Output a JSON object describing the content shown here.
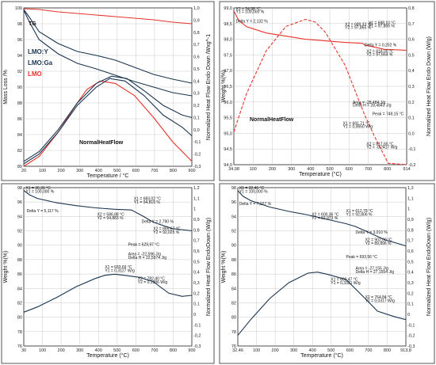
{
  "chart_data": [
    {
      "type": "line",
      "panel": "top-left",
      "xlabel": "Temperature / °C",
      "ylabel_left": "Mass Loss /%",
      "ylabel_right": "Normalized Heat Flow Endo Down /Wxg^-1",
      "xlim": [
        20,
        900
      ],
      "ylim_left": [
        80,
        100
      ],
      "ylim_right": [
        -0.3,
        1.0
      ],
      "x_ticks": [
        "20",
        "100",
        "200",
        "300",
        "400",
        "500",
        "600",
        "700",
        "800",
        "900"
      ],
      "y_left_ticks": [
        "80",
        "82",
        "84",
        "86",
        "88",
        "90",
        "92",
        "94",
        "96",
        "98",
        "100"
      ],
      "y_right_ticks": [
        "1,0",
        "0,9",
        "0,8",
        "0,7",
        "0,6",
        "0,5",
        "0,4",
        "0,3",
        "0,2",
        "0,1",
        "0,0",
        "-0,1",
        "-0,2",
        "-0,3"
      ],
      "grid": true,
      "labels": {
        "tg": "TG",
        "hf": "NormalHeatFlow"
      },
      "legend": [
        "LMO:Y",
        "LMO:Ga",
        "LMO"
      ],
      "series": [
        {
          "name": "LMO",
          "kind": "TG",
          "axis": "left",
          "color": "#e8322a",
          "x": [
            20,
            100,
            200,
            300,
            400,
            500,
            600,
            700,
            800,
            900
          ],
          "y": [
            99.9,
            99.8,
            99.5,
            99.3,
            99.1,
            98.9,
            98.7,
            98.5,
            98.2,
            98.0
          ]
        },
        {
          "name": "LMO:Y",
          "kind": "TG",
          "axis": "left",
          "color": "#1a3550",
          "x": [
            20,
            50,
            100,
            200,
            300,
            400,
            500,
            600,
            700,
            800,
            900
          ],
          "y": [
            99.8,
            98.8,
            97.0,
            95.5,
            94.5,
            94.0,
            93.4,
            92.5,
            91.6,
            91.0,
            90.5
          ]
        },
        {
          "name": "LMO:Ga",
          "kind": "TG",
          "axis": "left",
          "color": "#1a3550",
          "x": [
            20,
            50,
            100,
            200,
            300,
            400,
            500,
            600,
            700,
            800,
            900
          ],
          "y": [
            99.7,
            98.2,
            96.0,
            94.2,
            93.0,
            92.3,
            91.5,
            90.7,
            90.0,
            89.3,
            88.9
          ]
        },
        {
          "name": "LMO",
          "kind": "HF",
          "axis": "right",
          "color": "#e8322a",
          "x": [
            20,
            100,
            200,
            300,
            350,
            420,
            500,
            600,
            700,
            800,
            900
          ],
          "y": [
            -0.3,
            -0.22,
            -0.02,
            0.22,
            0.33,
            0.4,
            0.38,
            0.28,
            0.1,
            -0.1,
            -0.26
          ]
        },
        {
          "name": "LMO:Y",
          "kind": "HF",
          "axis": "right",
          "color": "#1a3550",
          "x": [
            20,
            100,
            200,
            300,
            400,
            470,
            550,
            650,
            750,
            850,
            900
          ],
          "y": [
            -0.28,
            -0.2,
            -0.02,
            0.2,
            0.35,
            0.42,
            0.4,
            0.28,
            0.12,
            0.02,
            -0.05
          ]
        },
        {
          "name": "LMO:Ga",
          "kind": "HF",
          "axis": "right",
          "color": "#1a3550",
          "x": [
            20,
            100,
            200,
            300,
            400,
            480,
            560,
            650,
            750,
            850,
            900
          ],
          "y": [
            -0.26,
            -0.18,
            0.0,
            0.22,
            0.38,
            0.44,
            0.42,
            0.32,
            0.2,
            0.12,
            0.1
          ]
        }
      ]
    },
    {
      "type": "line",
      "panel": "top-right",
      "xlabel": "Temperature (°C)",
      "ylabel_left": "Weight %(%)",
      "ylabel_right": "Normalized Heat Flow Endo Down (W/g)",
      "xlim": [
        34.98,
        914
      ],
      "ylim_left": [
        94.0,
        99.0
      ],
      "ylim_right": [
        -0.25,
        0.85
      ],
      "x_ticks": [
        "34,98",
        "100",
        "200",
        "300",
        "400",
        "500",
        "600",
        "700",
        "800",
        "914"
      ],
      "y_left_ticks": [
        "94,0",
        "94,5",
        "95,0",
        "95,5",
        "96,0",
        "96,5",
        "97,0",
        "97,5",
        "98,0",
        "98,5",
        "99,0"
      ],
      "y_right_ticks": [
        "0,8",
        "0,7",
        "0,6",
        "0,5",
        "0,4",
        "0,3",
        "0,2",
        "0,1",
        "0,0",
        "-0,1",
        "-0,2"
      ],
      "grid": true,
      "labels": {
        "hf": "NormalHeatFlow"
      },
      "annotations": [
        {
          "text": "X1 = 34,98 °C",
          "x": 45,
          "y": 98.93
        },
        {
          "text": "Y1 = 100,000 %",
          "x": 45,
          "y": 98.83
        },
        {
          "text": "Delta Y = 2,132 %",
          "x": 45,
          "y": 98.53
        },
        {
          "text": "X2 = 689,33 °C",
          "x": 600,
          "y": 98.43
        },
        {
          "text": "Y2 = 97,865 %",
          "x": 600,
          "y": 98.33
        },
        {
          "text": "X1 = 698,10 °C",
          "x": 720,
          "y": 98.48
        },
        {
          "text": "Y1 = 97,866 %",
          "x": 720,
          "y": 98.38
        },
        {
          "text": "Delta Y = 0,202 %",
          "x": 700,
          "y": 97.78
        },
        {
          "text": "X2 = 818,00 °C",
          "x": 710,
          "y": 97.57
        },
        {
          "text": "Y2 = 97,664 %",
          "x": 710,
          "y": 97.47
        },
        {
          "text": "Area = -28,484 J/g",
          "x": 640,
          "y": 95.95
        },
        {
          "text": "Delta H = 28,4843 J/g",
          "x": 640,
          "y": 95.85
        },
        {
          "text": "Peak = 749,15 °C",
          "x": 740,
          "y": 95.58
        },
        {
          "text": "X1 = 691,71 °C",
          "x": 590,
          "y": 95.27
        },
        {
          "text": "Y1 = 0,0650 W/g",
          "x": 590,
          "y": 95.17
        },
        {
          "text": "X2 = 817,65 °C",
          "x": 710,
          "y": 94.62
        },
        {
          "text": "Y2 = -0,2417 W/g",
          "x": 710,
          "y": 94.52
        }
      ],
      "series": [
        {
          "name": "",
          "kind": "TG",
          "axis": "left",
          "color": "#e8322a",
          "x": [
            35,
            60,
            100,
            150,
            200,
            300,
            400,
            500,
            600,
            690,
            700,
            800,
            914
          ],
          "y": [
            98.9,
            98.6,
            98.4,
            98.3,
            98.2,
            98.1,
            98.0,
            97.95,
            97.9,
            97.87,
            97.82,
            97.68,
            97.65
          ]
        },
        {
          "name": "",
          "kind": "HF",
          "axis": "right",
          "color": "#e8322a",
          "x": [
            35,
            100,
            200,
            300,
            400,
            450,
            500,
            600,
            700,
            750,
            820,
            914
          ],
          "y": [
            -0.02,
            0.25,
            0.55,
            0.72,
            0.77,
            0.75,
            0.68,
            0.45,
            0.1,
            -0.05,
            -0.24,
            -0.25
          ]
        }
      ]
    },
    {
      "type": "line",
      "panel": "bottom-left",
      "xlabel": "Temperature (°C)",
      "ylabel_left": "Weight %(%)",
      "ylabel_right": "Normalized Heat Flow EndoDown (W/g)",
      "xlim": [
        30,
        900
      ],
      "ylim_left": [
        76,
        98
      ],
      "ylim_right": [
        -0.3,
        1.2
      ],
      "x_ticks": [
        "30",
        "100",
        "200",
        "300",
        "400",
        "500",
        "600",
        "700",
        "800",
        "900"
      ],
      "y_left_ticks": [
        "76",
        "78",
        "80",
        "82",
        "84",
        "86",
        "88",
        "90",
        "92",
        "94",
        "96",
        "98"
      ],
      "y_right_ticks": [
        "1,2",
        "1,1",
        "1",
        "0,9",
        "0,8",
        "0,7",
        "0,6",
        "0,5",
        "0,4",
        "0,3",
        "0,2",
        "0,1",
        "0",
        "-0,1",
        "-0,2",
        "-0,3"
      ],
      "grid": true,
      "annotations": [
        {
          "text": "X1 = 36,36 °C",
          "x": 40,
          "y": 97.8
        },
        {
          "text": "Y1 = 100,000 %",
          "x": 40,
          "y": 97.3
        },
        {
          "text": "Delta Y = 5,117 %",
          "x": 45,
          "y": 94.6
        },
        {
          "text": "X2 = 586,88 °C",
          "x": 410,
          "y": 94.1
        },
        {
          "text": "Y2 = 94,883 %",
          "x": 410,
          "y": 93.6
        },
        {
          "text": "X1 = 683,02 °C",
          "x": 600,
          "y": 96.3
        },
        {
          "text": "Y1 = 94,815 %",
          "x": 600,
          "y": 95.8
        },
        {
          "text": "Delta Y = 2,790 %",
          "x": 640,
          "y": 93.1
        },
        {
          "text": "X2 = 865,67 °C",
          "x": 700,
          "y": 92.1
        },
        {
          "text": "Y2 = 92,025 %",
          "x": 700,
          "y": 91.6
        },
        {
          "text": "Peak = 629,97 °C",
          "x": 570,
          "y": 89.9
        },
        {
          "text": "Area = -22,596 J/g",
          "x": 570,
          "y": 88.6
        },
        {
          "text": "Delta H = 22,5974 J/g",
          "x": 570,
          "y": 88.1
        },
        {
          "text": "X1 = 683,69 °C",
          "x": 450,
          "y": 86.8
        },
        {
          "text": "Y1 = 0,3127 W/g",
          "x": 450,
          "y": 86.3
        },
        {
          "text": "X2 = 782,40 °C",
          "x": 620,
          "y": 85.2
        },
        {
          "text": "Y2 = 0,1986 W/g",
          "x": 620,
          "y": 84.7
        }
      ],
      "series": [
        {
          "name": "",
          "kind": "TG",
          "axis": "left",
          "color": "#1a3550",
          "x": [
            30,
            60,
            100,
            200,
            300,
            400,
            500,
            587,
            650,
            700,
            800,
            900
          ],
          "y": [
            97.6,
            97.0,
            96.5,
            95.9,
            95.5,
            95.2,
            95.0,
            94.9,
            94.0,
            93.2,
            92.3,
            92.0
          ]
        },
        {
          "name": "",
          "kind": "HF",
          "axis": "right",
          "color": "#1a3550",
          "x": [
            30,
            100,
            200,
            300,
            400,
            450,
            500,
            550,
            630,
            700,
            780,
            850,
            900
          ],
          "y": [
            0.02,
            0.07,
            0.16,
            0.26,
            0.34,
            0.37,
            0.38,
            0.37,
            0.35,
            0.31,
            0.2,
            0.17,
            0.18
          ]
        }
      ]
    },
    {
      "type": "line",
      "panel": "bottom-right",
      "xlabel": "Temperature (°C)",
      "ylabel_left": "Weight %(%)",
      "ylabel_right": "Normalized Heat Flow EndoDown (W/g)",
      "xlim": [
        32.46,
        913.8
      ],
      "ylim_left": [
        76,
        98
      ],
      "ylim_right": [
        -0.3,
        1.2
      ],
      "x_ticks": [
        "32,46",
        "100",
        "200",
        "300",
        "400",
        "500",
        "600",
        "700",
        "800",
        "913,8"
      ],
      "y_left_ticks": [
        "76",
        "78",
        "80",
        "82",
        "84",
        "86",
        "88",
        "90",
        "92",
        "94",
        "96",
        "98"
      ],
      "y_right_ticks": [
        "1,2",
        "1,1",
        "1",
        "0,9",
        "0,8",
        "0,7",
        "0,6",
        "0,5",
        "0,4",
        "0,3",
        "0,2",
        "0,1",
        "0",
        "-0,1",
        "-0,2",
        "-0,3"
      ],
      "grid": true,
      "annotations": [
        {
          "text": "X1 = 32,46 °C",
          "x": 40,
          "y": 97.8
        },
        {
          "text": "Y1 = 100,000 %",
          "x": 40,
          "y": 97.3
        },
        {
          "text": "Delta Y = 7,027 %",
          "x": 40,
          "y": 95.6
        },
        {
          "text": "X2 = 600,36 °C",
          "x": 420,
          "y": 94.1
        },
        {
          "text": "Y2 = 92,973 %",
          "x": 420,
          "y": 93.6
        },
        {
          "text": "X1 = 612,78 °C",
          "x": 600,
          "y": 94.6
        },
        {
          "text": "Y1 = 92,806 %",
          "x": 600,
          "y": 94.1
        },
        {
          "text": "Delta Y = 3,010 %",
          "x": 650,
          "y": 91.6
        },
        {
          "text": "X2 = 902,00 °C",
          "x": 700,
          "y": 90.6
        },
        {
          "text": "Y2 = 89,896 %",
          "x": 700,
          "y": 90.1
        },
        {
          "text": "Peak = 693,56 °C",
          "x": 600,
          "y": 88.2
        },
        {
          "text": "Area = -27,155 J/g",
          "x": 650,
          "y": 86.6
        },
        {
          "text": "Delta H = 27,1554 J/g",
          "x": 650,
          "y": 86.1
        },
        {
          "text": "X1 = 603,47 °C",
          "x": 520,
          "y": 85.1
        },
        {
          "text": "Y1 = 0,3321 W/g",
          "x": 520,
          "y": 84.6
        },
        {
          "text": "X2 = 764,84 °C",
          "x": 700,
          "y": 82.6
        },
        {
          "text": "Y2 = 0,0317 W/g",
          "x": 700,
          "y": 82.1
        }
      ],
      "series": [
        {
          "name": "",
          "kind": "TG",
          "axis": "left",
          "color": "#1a3550",
          "x": [
            32,
            60,
            100,
            200,
            300,
            400,
            500,
            600,
            650,
            700,
            800,
            914
          ],
          "y": [
            97.6,
            96.8,
            96.2,
            95.3,
            94.7,
            94.2,
            93.6,
            93.0,
            92.6,
            92.0,
            90.8,
            89.9
          ]
        },
        {
          "name": "",
          "kind": "HF",
          "axis": "right",
          "color": "#1a3550",
          "x": [
            32,
            100,
            200,
            300,
            400,
            450,
            500,
            600,
            700,
            765,
            850,
            914
          ],
          "y": [
            -0.2,
            -0.05,
            0.15,
            0.3,
            0.39,
            0.4,
            0.38,
            0.33,
            0.15,
            0.03,
            -0.02,
            -0.05
          ]
        }
      ]
    }
  ]
}
